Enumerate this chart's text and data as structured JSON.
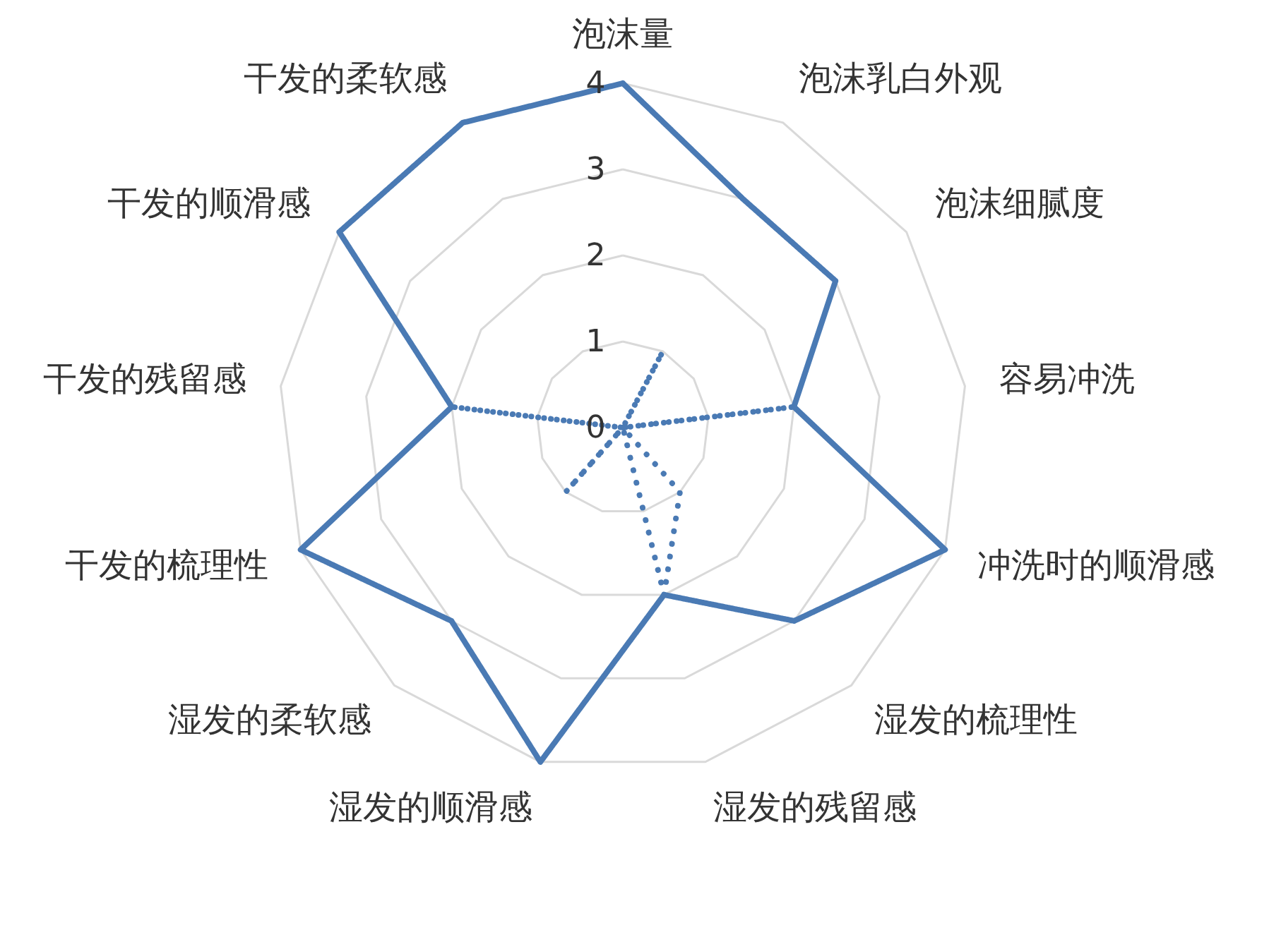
{
  "chart_data": {
    "type": "radar",
    "categories": [
      "泡沫量",
      "泡沫乳白外观",
      "泡沫细腻度",
      "容易冲洗",
      "冲洗时的顺滑感",
      "湿发的梳理性",
      "湿发的残留感",
      "湿发的顺滑感",
      "湿发的柔软感",
      "干发的梳理性",
      "干发的残留感",
      "干发的顺滑感",
      "干发的柔软感"
    ],
    "series": [
      {
        "color": "#4a7ab4",
        "line_style": "solid",
        "values": [
          4,
          3,
          3,
          2,
          4,
          3,
          2,
          4,
          3,
          4,
          2,
          4,
          4
        ]
      },
      {
        "color": "#4a7ab4",
        "line_style": "dotted",
        "values": [
          0,
          1,
          0,
          2,
          0,
          1,
          2,
          0,
          1,
          0,
          2,
          0,
          0
        ]
      }
    ],
    "ylim": [
      0,
      4
    ],
    "yticks": [
      0,
      1,
      2,
      3,
      4
    ],
    "grid": true,
    "marker": "none"
  }
}
